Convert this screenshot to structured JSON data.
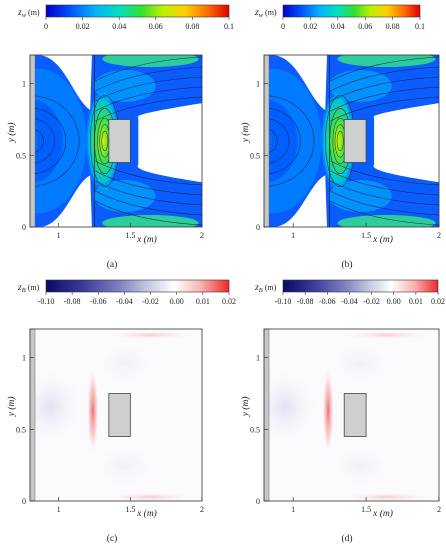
{
  "chart_data": [
    {
      "type": "heatmap",
      "panel_label": "(a)",
      "variable_label": "z",
      "variable_subscript": "w",
      "variable_unit": " (m)",
      "colorbar_ticks": [
        "0",
        "0.02",
        "0.04",
        "0.06",
        "0.08",
        "0.1"
      ],
      "colorbar_range": [
        0,
        0.1
      ],
      "xlabel": "x (m)",
      "ylabel": "y (m)",
      "x_ticks": [
        "1",
        "1.5",
        "2"
      ],
      "y_ticks": [
        "0",
        "0.5",
        "1"
      ],
      "xlim": [
        0.8,
        2.0
      ],
      "ylim": [
        0,
        1.2
      ],
      "obstacle": {
        "x": [
          1.35,
          1.5
        ],
        "y": [
          0.45,
          0.75
        ]
      }
    },
    {
      "type": "heatmap",
      "panel_label": "(b)",
      "variable_label": "z",
      "variable_subscript": "w",
      "variable_unit": " (m)",
      "colorbar_ticks": [
        "0",
        "0.02",
        "0.04",
        "0.06",
        "0.08",
        "0.1"
      ],
      "colorbar_range": [
        0,
        0.1
      ],
      "xlabel": "x (m)",
      "ylabel": "y (m)",
      "x_ticks": [
        "1",
        "1.5",
        "2"
      ],
      "y_ticks": [
        "0",
        "0.5",
        "1"
      ],
      "xlim": [
        0.8,
        2.0
      ],
      "ylim": [
        0,
        1.2
      ],
      "obstacle": {
        "x": [
          1.35,
          1.5
        ],
        "y": [
          0.45,
          0.75
        ]
      }
    },
    {
      "type": "heatmap",
      "panel_label": "(c)",
      "variable_label": "z",
      "variable_subscript": "B",
      "variable_unit": " (m)",
      "colorbar_ticks": [
        "-0.10",
        "-0.08",
        "-0.06",
        "-0.04",
        "-0.02",
        "0.00",
        "0.01",
        "0.02"
      ],
      "colorbar_range": [
        -0.1,
        0.02
      ],
      "xlabel": "x (m)",
      "ylabel": "y (m)",
      "x_ticks": [
        "1",
        "1.5",
        "2"
      ],
      "y_ticks": [
        "0",
        "0.5",
        "1"
      ],
      "xlim": [
        0.8,
        2.0
      ],
      "ylim": [
        0,
        1.2
      ],
      "obstacle": {
        "x": [
          1.35,
          1.5
        ],
        "y": [
          0.45,
          0.75
        ]
      }
    },
    {
      "type": "heatmap",
      "panel_label": "(d)",
      "variable_label": "z",
      "variable_subscript": "B",
      "variable_unit": " (m)",
      "colorbar_ticks": [
        "-0.10",
        "-0.08",
        "-0.06",
        "-0.04",
        "-0.02",
        "0.00",
        "0.01",
        "0.02"
      ],
      "colorbar_range": [
        -0.1,
        0.02
      ],
      "xlabel": "x (m)",
      "ylabel": "y (m)",
      "x_ticks": [
        "1",
        "1.5",
        "2"
      ],
      "y_ticks": [
        "0",
        "0.5",
        "1"
      ],
      "xlim": [
        0.8,
        2.0
      ],
      "ylim": [
        0,
        1.2
      ],
      "obstacle": {
        "x": [
          1.35,
          1.5
        ],
        "y": [
          0.45,
          0.75
        ]
      }
    }
  ],
  "colors": {
    "jet": [
      "#0000c8",
      "#0050ff",
      "#00b4ff",
      "#00e0c0",
      "#30e030",
      "#c0f000",
      "#ffd000",
      "#ff7000",
      "#e00000"
    ],
    "diverging": [
      "#0a0a64",
      "#3a3a9a",
      "#8080c0",
      "#c4c4e2",
      "#ffffff",
      "#f8b0b0",
      "#ee2828"
    ]
  }
}
